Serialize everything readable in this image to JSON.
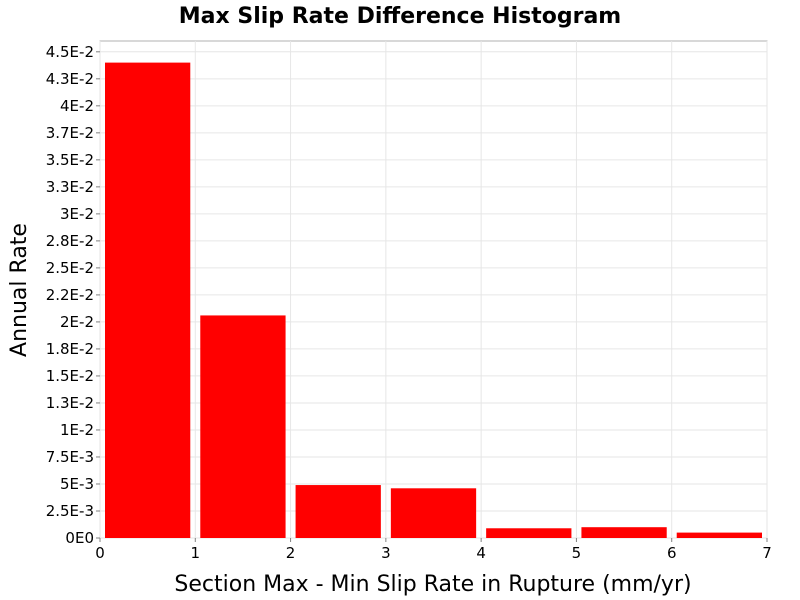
{
  "chart_data": {
    "type": "bar",
    "title": "Max Slip Rate Difference Histogram",
    "xlabel": "Section Max - Min Slip Rate in Rupture (mm/yr)",
    "ylabel": "Annual Rate",
    "xlim": [
      0,
      7
    ],
    "ylim": [
      0,
      0.046
    ],
    "grid": true,
    "bar_color": "#ff0000",
    "bins": [
      {
        "x0": 0,
        "x1": 1,
        "value": 0.044
      },
      {
        "x0": 1,
        "x1": 2,
        "value": 0.0206
      },
      {
        "x0": 2,
        "x1": 3,
        "value": 0.0049
      },
      {
        "x0": 3,
        "x1": 4,
        "value": 0.0046
      },
      {
        "x0": 4,
        "x1": 5,
        "value": 0.0009
      },
      {
        "x0": 5,
        "x1": 6,
        "value": 0.001
      },
      {
        "x0": 6,
        "x1": 7,
        "value": 0.0005
      }
    ],
    "x_ticks": [
      {
        "value": 0,
        "label": "0"
      },
      {
        "value": 1,
        "label": "1"
      },
      {
        "value": 2,
        "label": "2"
      },
      {
        "value": 3,
        "label": "3"
      },
      {
        "value": 4,
        "label": "4"
      },
      {
        "value": 5,
        "label": "5"
      },
      {
        "value": 6,
        "label": "6"
      },
      {
        "value": 7,
        "label": "7"
      }
    ],
    "y_ticks": [
      {
        "value": 0,
        "label": "0E0"
      },
      {
        "value": 0.0025,
        "label": "2.5E-3"
      },
      {
        "value": 0.005,
        "label": "5E-3"
      },
      {
        "value": 0.0075,
        "label": "7.5E-3"
      },
      {
        "value": 0.01,
        "label": "1E-2"
      },
      {
        "value": 0.0125,
        "label": "1.3E-2"
      },
      {
        "value": 0.015,
        "label": "1.5E-2"
      },
      {
        "value": 0.0175,
        "label": "1.8E-2"
      },
      {
        "value": 0.02,
        "label": "2E-2"
      },
      {
        "value": 0.0225,
        "label": "2.2E-2"
      },
      {
        "value": 0.025,
        "label": "2.5E-2"
      },
      {
        "value": 0.0275,
        "label": "2.8E-2"
      },
      {
        "value": 0.03,
        "label": "3E-2"
      },
      {
        "value": 0.0325,
        "label": "3.3E-2"
      },
      {
        "value": 0.035,
        "label": "3.5E-2"
      },
      {
        "value": 0.0375,
        "label": "3.7E-2"
      },
      {
        "value": 0.04,
        "label": "4E-2"
      },
      {
        "value": 0.0425,
        "label": "4.3E-2"
      },
      {
        "value": 0.045,
        "label": "4.5E-2"
      }
    ]
  }
}
